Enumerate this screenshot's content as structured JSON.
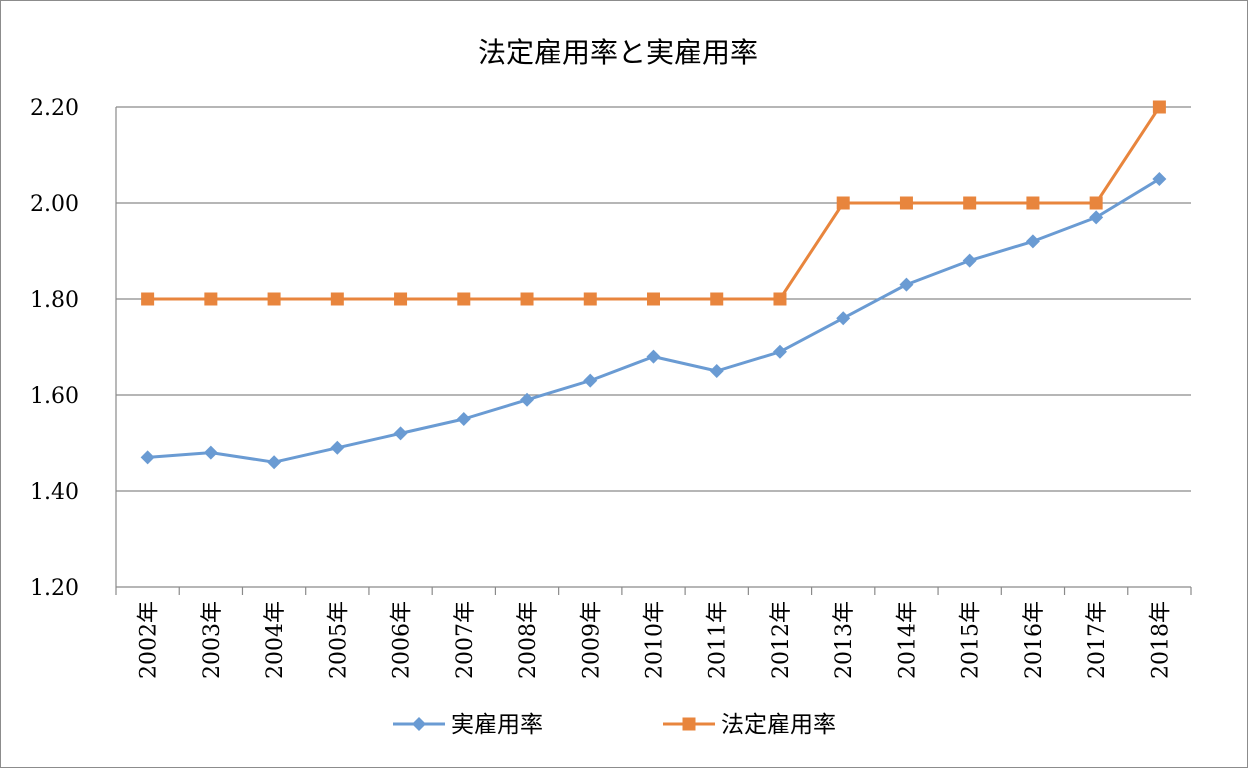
{
  "chart_data": {
    "type": "line",
    "title": "法定雇用率と実雇用率",
    "categories": [
      "2002年",
      "2003年",
      "2004年",
      "2005年",
      "2006年",
      "2007年",
      "2008年",
      "2009年",
      "2010年",
      "2011年",
      "2012年",
      "2013年",
      "2014年",
      "2015年",
      "2016年",
      "2017年",
      "2018年"
    ],
    "y_ticks": [
      "1.20",
      "1.40",
      "1.60",
      "1.80",
      "2.00",
      "2.20"
    ],
    "ylim": [
      1.2,
      2.2
    ],
    "grid": true,
    "legend_position": "bottom",
    "series": [
      {
        "name": "実雇用率",
        "color": "#6a9bd3",
        "marker": "diamond",
        "values": [
          1.47,
          1.48,
          1.46,
          1.49,
          1.52,
          1.55,
          1.59,
          1.63,
          1.68,
          1.65,
          1.69,
          1.76,
          1.83,
          1.88,
          1.92,
          1.97,
          2.05
        ]
      },
      {
        "name": "法定雇用率",
        "color": "#e8853d",
        "marker": "square",
        "values": [
          1.8,
          1.8,
          1.8,
          1.8,
          1.8,
          1.8,
          1.8,
          1.8,
          1.8,
          1.8,
          1.8,
          2.0,
          2.0,
          2.0,
          2.0,
          2.0,
          2.2
        ]
      }
    ]
  }
}
